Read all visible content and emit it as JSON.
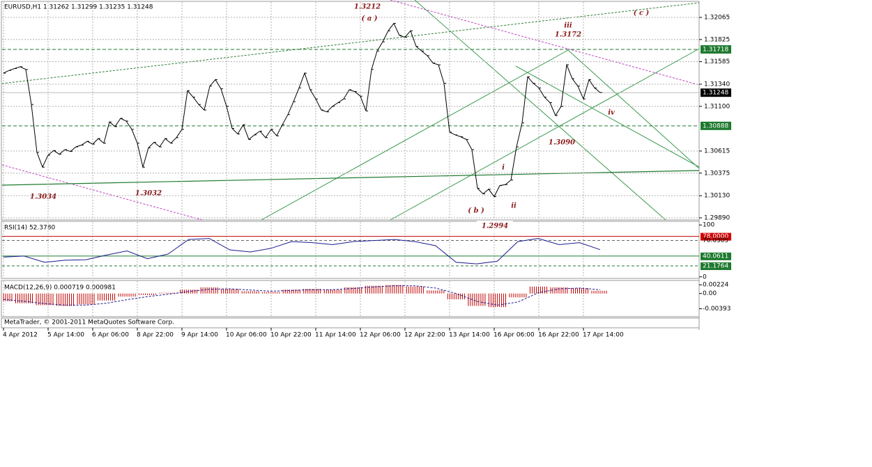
{
  "header": "EURUSD,H1  1.31262 1.31299 1.31235 1.31248",
  "price": {
    "type": "line",
    "ylim": [
      1.29867,
      1.32239
    ],
    "yticks": [
      1.32065,
      1.31825,
      1.31585,
      {
        "value": 1.3134,
        "label": "1.31340"
      },
      {
        "value": 1.311,
        "label": "1.31100"
      },
      1.30615,
      1.30375,
      {
        "value": 1.3013,
        "label": "1.30130"
      },
      {
        "value": 1.2989,
        "label": "1.29890"
      }
    ],
    "levels": [
      1.31718,
      1.31248,
      1.30888
    ],
    "close": [
      1.3146,
      1.3149,
      1.3151,
      1.3153,
      1.315,
      1.3112,
      1.306,
      1.3044,
      1.3057,
      1.3062,
      1.3058,
      1.3063,
      1.3061,
      1.3066,
      1.3068,
      1.3072,
      1.3069,
      1.3075,
      1.307,
      1.3093,
      1.3088,
      1.3097,
      1.3094,
      1.3085,
      1.307,
      1.3044,
      1.3065,
      1.3071,
      1.3066,
      1.3075,
      1.307,
      1.3076,
      1.3085,
      1.3127,
      1.312,
      1.3112,
      1.3106,
      1.3132,
      1.3139,
      1.3129,
      1.311,
      1.3086,
      1.308,
      1.309,
      1.3074,
      1.3079,
      1.3083,
      1.3076,
      1.3085,
      1.3078,
      1.309,
      1.3101,
      1.3115,
      1.313,
      1.3146,
      1.3128,
      1.3118,
      1.3106,
      1.3104,
      1.311,
      1.3114,
      1.3118,
      1.3128,
      1.3126,
      1.3121,
      1.3105,
      1.315,
      1.317,
      1.318,
      1.3192,
      1.32,
      1.3187,
      1.3185,
      1.3192,
      1.3175,
      1.317,
      1.3165,
      1.3157,
      1.3155,
      1.3135,
      1.3082,
      1.3079,
      1.3077,
      1.3074,
      1.3063,
      1.3021,
      1.3015,
      1.302,
      1.3012,
      1.3024,
      1.3025,
      1.303,
      1.3066,
      1.3092,
      1.3142,
      1.3135,
      1.313,
      1.312,
      1.3114,
      1.31,
      1.311,
      1.3155,
      1.314,
      1.3132,
      1.3118,
      1.3139,
      1.313,
      1.3125
    ],
    "annotations": [
      "1.3212",
      "( a )",
      "iii",
      "1.3172",
      "( c )",
      "1.3090",
      "iv",
      "i",
      "ii",
      "( b )",
      "1.2994",
      "1.3034",
      "1.3032"
    ]
  },
  "rsi": {
    "title": "RSI(14) 52.3780",
    "ylim": [
      -3,
      107
    ],
    "yticks": [
      0,
      100
    ],
    "levels": [
      {
        "value": 78,
        "label": "78.0000"
      },
      70.0305,
      40.0611,
      21.1764
    ],
    "values": [
      38,
      40,
      28,
      32,
      33,
      42,
      50,
      35,
      44,
      72,
      74,
      52,
      48,
      55,
      68,
      66,
      62,
      68,
      70,
      72,
      68,
      60,
      28,
      25,
      30,
      68,
      74,
      62,
      66,
      52.378
    ]
  },
  "macd": {
    "title": "MACD(12,26,9) 0.000719 0.000981",
    "ylim": [
      -0.00597,
      0.00336
    ],
    "yticks": [
      0.00224,
      {
        "value": 0,
        "label": "0.00"
      },
      -0.00393
    ],
    "histogram": [
      -0.002,
      -0.0025,
      -0.003,
      -0.0032,
      -0.0028,
      -0.0018,
      -0.0008,
      -0.0004,
      0.0002,
      0.001,
      0.0016,
      0.0012,
      0.0006,
      0.0004,
      0.001,
      0.0012,
      0.001,
      0.0016,
      0.002,
      0.0022,
      0.0018,
      0.0008,
      -0.0015,
      -0.0032,
      -0.0035,
      -0.001,
      0.0018,
      0.0016,
      0.0014,
      0.000719
    ],
    "signal": [
      -0.0015,
      -0.002,
      -0.0026,
      -0.003,
      -0.003,
      -0.0025,
      -0.0016,
      -0.0008,
      -0.0002,
      0.0005,
      0.0011,
      0.0012,
      0.0009,
      0.0006,
      0.0008,
      0.001,
      0.001,
      0.0013,
      0.0017,
      0.002,
      0.002,
      0.0014,
      0,
      -0.002,
      -0.003,
      -0.0022,
      0.0002,
      0.0012,
      0.0014,
      0.000981
    ]
  },
  "footer": "MetaTrader, © 2001-2011 MetaQuotes Software Corp.",
  "time_labels": [
    "4 Apr 2012",
    "5 Apr 14:00",
    "6 Apr 06:00",
    "8 Apr 22:00",
    "9 Apr 14:00",
    "10 Apr 06:00",
    "10 Apr 22:00",
    "11 Apr 14:00",
    "12 Apr 06:00",
    "12 Apr 22:00",
    "13 Apr 14:00",
    "16 Apr 06:00",
    "16 Apr 22:00",
    "17 Apr 14:00"
  ]
}
